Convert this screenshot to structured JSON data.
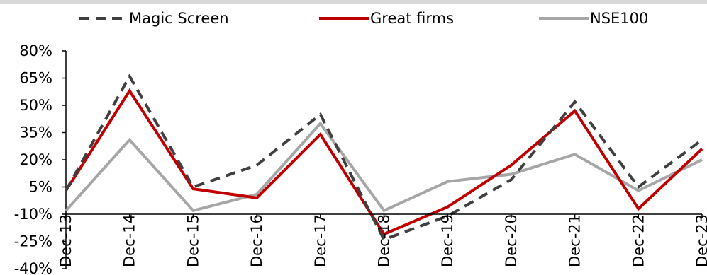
{
  "chart_data": {
    "type": "line",
    "title": "",
    "xlabel": "",
    "ylabel": "",
    "categories": [
      "Dec-13",
      "Dec-14",
      "Dec-15",
      "Dec-16",
      "Dec-17",
      "Dec-18",
      "Dec-19",
      "Dec-20",
      "Dec-21",
      "Dec-22",
      "Dec-23"
    ],
    "y_ticks": [
      "80%",
      "65%",
      "50%",
      "35%",
      "20%",
      "5%",
      "-10%",
      "-25%",
      "-40%"
    ],
    "ylim": [
      -40,
      80
    ],
    "y_unit": "%",
    "legend_position": "top",
    "grid": false,
    "series": [
      {
        "name": "Magic Screen",
        "color": "#404040",
        "dash": true,
        "values": [
          3,
          66,
          5,
          17,
          45,
          -24,
          -11,
          9,
          52,
          5,
          31
        ]
      },
      {
        "name": "Great firms",
        "color": "#c00000",
        "dash": false,
        "values": [
          3,
          58,
          4,
          -1,
          34,
          -21,
          -6,
          17,
          47,
          -7,
          26
        ]
      },
      {
        "name": "NSE100",
        "color": "#a6a6a6",
        "dash": false,
        "values": [
          -8,
          31,
          -8,
          1,
          40,
          -8,
          8,
          12,
          23,
          3,
          20
        ]
      }
    ]
  }
}
